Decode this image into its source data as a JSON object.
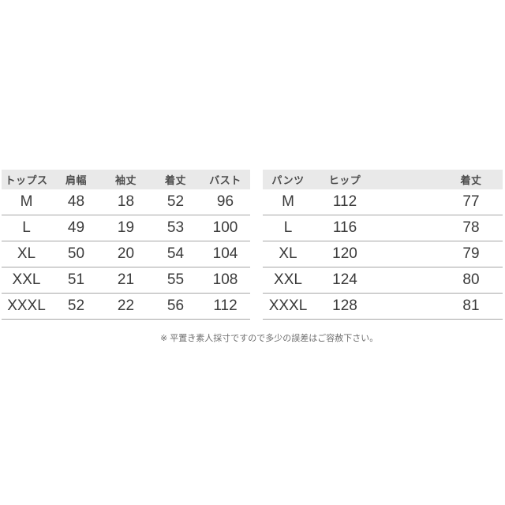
{
  "note": {
    "text": "※ 平置き素人採寸ですので多少の誤差はご容赦下さい。"
  },
  "tables": [
    {
      "title": "トップス",
      "headers": [
        "トップス",
        "肩幅",
        "袖丈",
        "着丈",
        "バスト"
      ],
      "rows": [
        [
          "M",
          "48",
          "18",
          "52",
          "96"
        ],
        [
          "L",
          "49",
          "19",
          "53",
          "100"
        ],
        [
          "XL",
          "50",
          "20",
          "54",
          "104"
        ],
        [
          "XXL",
          "51",
          "21",
          "55",
          "108"
        ],
        [
          "XXXL",
          "52",
          "22",
          "56",
          "112"
        ]
      ]
    },
    {
      "title": "パンツ",
      "headers": [
        "パンツ",
        "ヒップ",
        "着丈"
      ],
      "rows": [
        [
          "M",
          "112",
          "77"
        ],
        [
          "L",
          "116",
          "78"
        ],
        [
          "XL",
          "120",
          "79"
        ],
        [
          "XXL",
          "124",
          "80"
        ],
        [
          "XXXL",
          "128",
          "81"
        ]
      ]
    }
  ],
  "colors": {
    "background": "#ffffff",
    "header_bg": "#e9e9e9",
    "header_text": "#4d4d4d",
    "cell_text": "#3a3a3a",
    "divider": "#a6a6a6",
    "note_text": "#6e6e6e"
  }
}
